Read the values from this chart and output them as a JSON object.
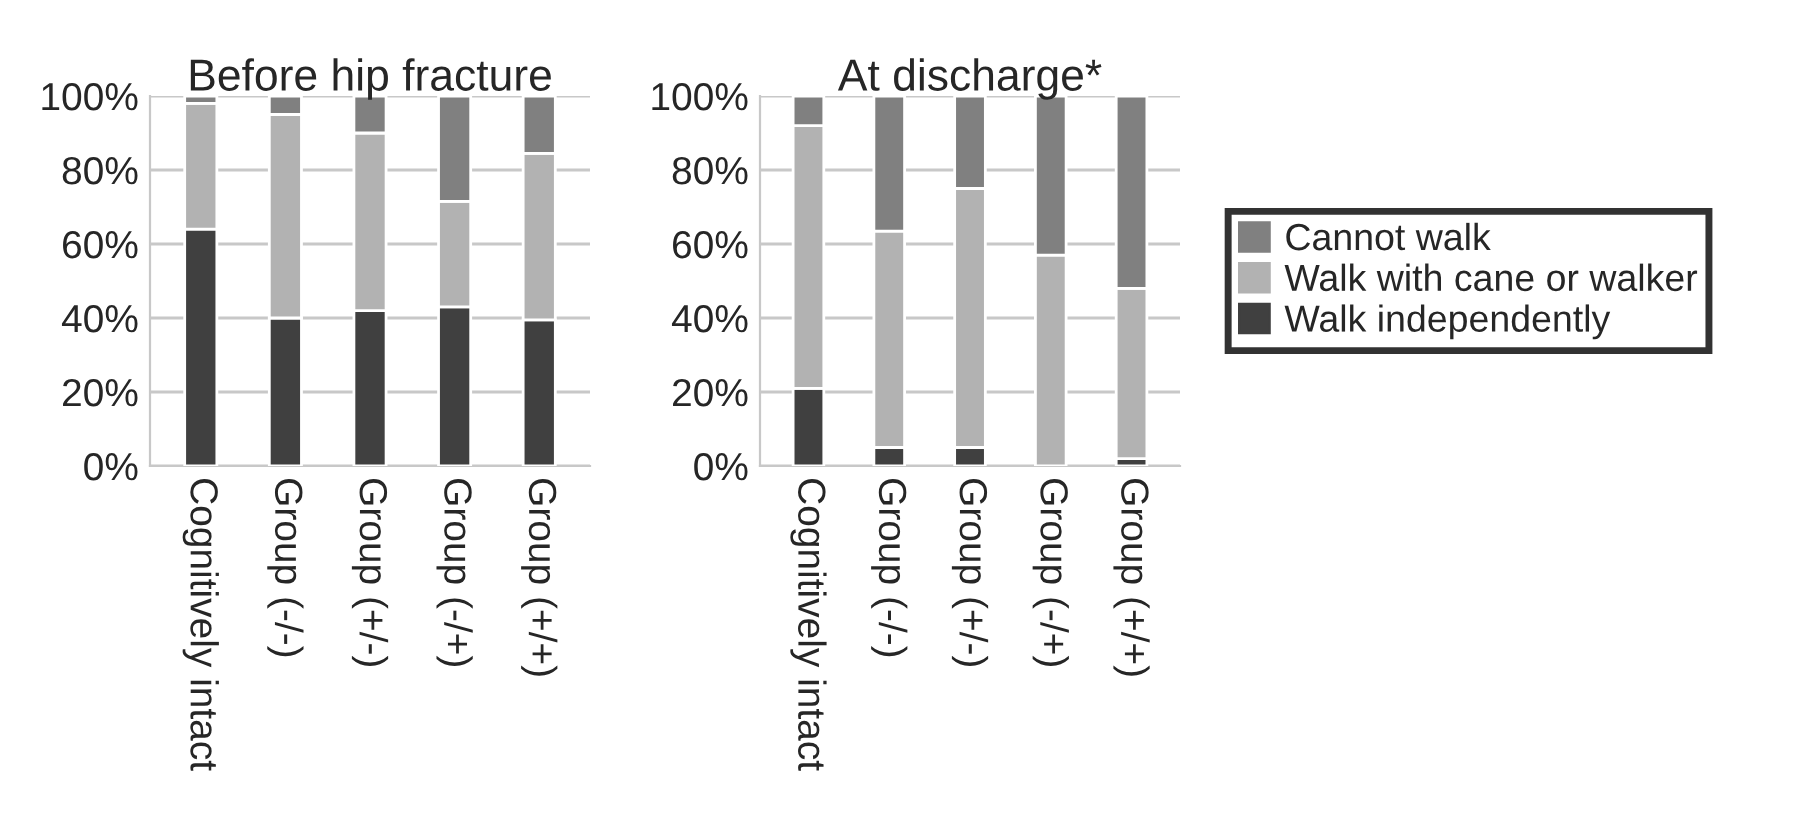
{
  "chart_data": [
    {
      "type": "bar",
      "title": "Before hip fracture",
      "stacked": true,
      "grid": "y",
      "categories": [
        "Cognitively intact",
        "Group (-/-)",
        "Group (+/-)",
        "Group (-/+)",
        "Group (+/+)"
      ],
      "ylim": [
        0,
        100
      ],
      "yticks": [
        {
          "value": 0,
          "label": "0%"
        },
        {
          "value": 20,
          "label": "20%"
        },
        {
          "value": 40,
          "label": "40%"
        },
        {
          "value": 60,
          "label": "60%"
        },
        {
          "value": 80,
          "label": "80%"
        },
        {
          "value": 100,
          "label": "100%"
        }
      ],
      "series": [
        {
          "color": "#404040",
          "values": [
            64,
            40,
            42,
            43,
            39.5
          ]
        },
        {
          "color": "#b2b2b2",
          "values": [
            34,
            55,
            48,
            28.5,
            45
          ]
        },
        {
          "color": "#808080",
          "values": [
            2,
            5,
            10,
            28.5,
            15.5
          ]
        }
      ]
    },
    {
      "type": "bar",
      "title": "At discharge*",
      "stacked": true,
      "grid": "y",
      "legend": "right",
      "categories": [
        "Cognitively intact",
        "Group (-/-)",
        "Group (+/-)",
        "Group (-/+)",
        "Group (+/+)"
      ],
      "ylim": [
        0,
        100
      ],
      "yticks": [
        {
          "value": 0,
          "label": "0%"
        },
        {
          "value": 20,
          "label": "20%"
        },
        {
          "value": 40,
          "label": "40%"
        },
        {
          "value": 60,
          "label": "60%"
        },
        {
          "value": 80,
          "label": "80%"
        },
        {
          "value": 100,
          "label": "100%"
        }
      ],
      "series": [
        {
          "name": "Walk independently",
          "color": "#404040",
          "values": [
            21,
            5,
            5,
            0,
            2
          ]
        },
        {
          "name": "Walk with cane or walker",
          "color": "#b2b2b2",
          "values": [
            71,
            58.5,
            70,
            57,
            46
          ]
        },
        {
          "name": "Cannot walk",
          "color": "#808080",
          "values": [
            8,
            36.5,
            25,
            43,
            52
          ]
        }
      ]
    }
  ]
}
